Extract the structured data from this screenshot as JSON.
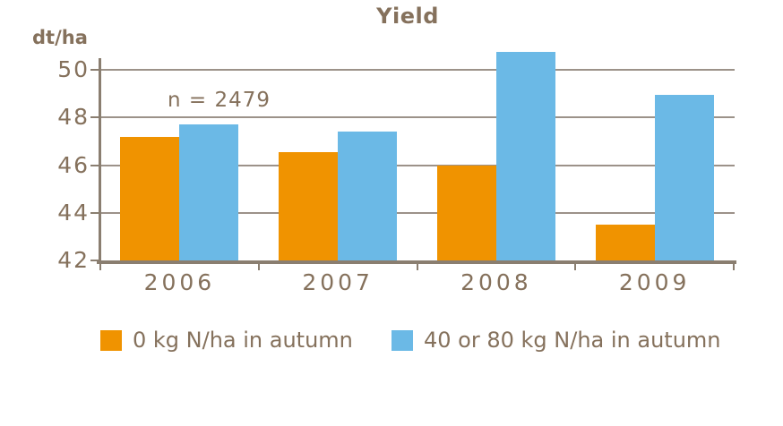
{
  "title": "Yield",
  "y_axis_unit": "dt/ha",
  "annotation": "n = 2479",
  "colors": {
    "series_orange": "#F09300",
    "series_blue": "#6BB9E6",
    "text": "#85715C",
    "gridline": "#9C9289",
    "axis": "#8A7E70",
    "background": "#FFFFFF"
  },
  "chart_data": {
    "type": "bar",
    "title": "Yield",
    "ylabel": "dt/ha",
    "xlabel": "",
    "annotation": "n = 2479",
    "categories": [
      "2006",
      "2007",
      "2008",
      "2009"
    ],
    "series": [
      {
        "name": "0 kg N/ha in autumn",
        "color": "#F09300",
        "values": [
          47.2,
          46.55,
          46.0,
          43.5
        ]
      },
      {
        "name": "40 or 80 kg N/ha in autumn",
        "color": "#6BB9E6",
        "values": [
          47.7,
          47.4,
          50.75,
          48.95
        ]
      }
    ],
    "y_ticks": [
      42,
      44,
      46,
      48,
      50
    ],
    "ylim": [
      42,
      51
    ],
    "grid": true,
    "legend_position": "bottom"
  }
}
